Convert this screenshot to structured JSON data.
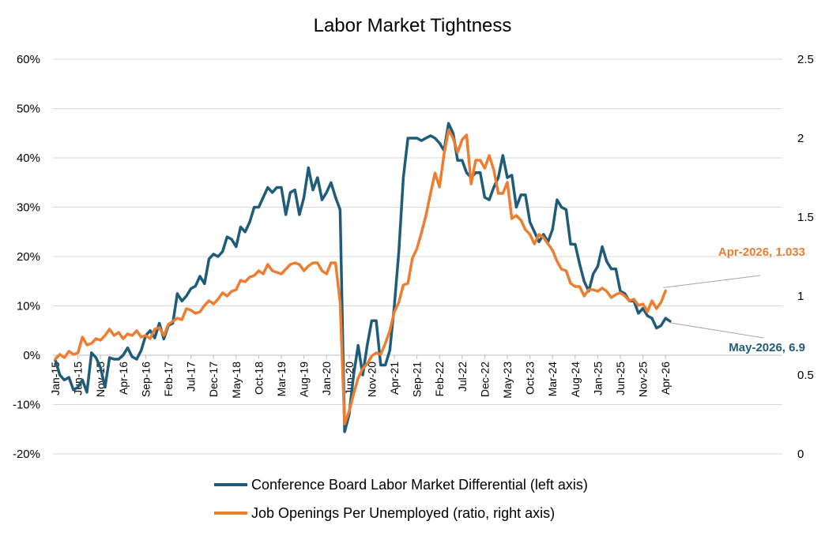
{
  "chart_data": {
    "type": "line",
    "title": "Labor Market Tightness",
    "x_tick_labels": [
      "Jan-15",
      "Jun-15",
      "Nov-15",
      "Apr-16",
      "Sep-16",
      "Feb-17",
      "Jul-17",
      "Dec-17",
      "May-18",
      "Oct-18",
      "Mar-19",
      "Aug-19",
      "Jan-20",
      "Jun-20",
      "Nov-20",
      "Apr-21",
      "Sep-21",
      "Feb-22",
      "Jul-22",
      "Dec-22",
      "May-23",
      "Oct-23",
      "Mar-24",
      "Aug-24",
      "Jan-25",
      "Jun-25",
      "Nov-25",
      "Apr-26"
    ],
    "y_left": {
      "ticks": [
        "-20%",
        "-10%",
        "0%",
        "10%",
        "20%",
        "30%",
        "40%",
        "50%",
        "60%"
      ],
      "range": [
        -20,
        60
      ]
    },
    "y_right": {
      "ticks": [
        "0",
        "0.5",
        "1",
        "1.5",
        "2",
        "2.5"
      ],
      "range": [
        0,
        2.5
      ]
    },
    "grid": "horizontal",
    "legend_position": "bottom",
    "series": [
      {
        "name": "Conference Board Labor Market Differential (left axis)",
        "axis": "left",
        "color": "#1f5c7a",
        "start": "Jan-15",
        "values": [
          -1.0,
          -4.0,
          -5.0,
          -4.5,
          -7.0,
          -6.5,
          -5.0,
          -7.5,
          0.5,
          -0.5,
          -2.5,
          -6.5,
          -0.5,
          -0.8,
          -0.8,
          0.0,
          1.5,
          -0.3,
          -0.8,
          1.0,
          4.0,
          5.0,
          3.5,
          6.5,
          3.3,
          6.0,
          6.5,
          12.5,
          11.0,
          12.0,
          13.5,
          14.0,
          16.0,
          14.5,
          19.5,
          20.5,
          20.0,
          21.0,
          24.0,
          23.5,
          22.0,
          26.0,
          25.0,
          27.0,
          30.0,
          30.0,
          32.0,
          34.0,
          33.0,
          34.0,
          34.0,
          28.5,
          33.0,
          33.5,
          28.5,
          32.0,
          38.0,
          33.5,
          36.0,
          31.5,
          33.0,
          35.0,
          32.0,
          29.5,
          -15.5,
          -12.0,
          -4.0,
          2.0,
          -4.0,
          2.0,
          7.0,
          7.0,
          -2.0,
          -2.0,
          1.0,
          10.0,
          21.0,
          36.0,
          44.0,
          44.0,
          44.0,
          43.5,
          44.0,
          44.5,
          44.0,
          43.0,
          41.5,
          47.0,
          45.0,
          39.5,
          39.5,
          37.0,
          36.0,
          37.0,
          37.0,
          32.0,
          31.5,
          34.0,
          36.0,
          40.5,
          36.0,
          36.5,
          30.0,
          32.5,
          32.5,
          27.0,
          25.0,
          23.0,
          24.5,
          23.0,
          25.5,
          31.5,
          30.0,
          29.5,
          22.5,
          22.5,
          18.5,
          15.0,
          13.0,
          16.5,
          18.0,
          22.0,
          19.0,
          17.5,
          17.5,
          13.0,
          12.5,
          11.0,
          11.0,
          8.5,
          9.5,
          8.0,
          7.5,
          5.5,
          6.0,
          7.5,
          6.9
        ]
      },
      {
        "name": "Job Openings Per Unemployed (ratio, right axis)",
        "axis": "right",
        "color": "#ed7d31",
        "start": "Jan-15",
        "values": [
          0.6,
          0.63,
          0.61,
          0.65,
          0.63,
          0.64,
          0.74,
          0.69,
          0.7,
          0.73,
          0.72,
          0.75,
          0.79,
          0.75,
          0.77,
          0.73,
          0.76,
          0.75,
          0.78,
          0.74,
          0.75,
          0.73,
          0.79,
          0.8,
          0.75,
          0.82,
          0.84,
          0.86,
          0.85,
          0.92,
          0.91,
          0.89,
          0.9,
          0.94,
          0.97,
          0.95,
          0.98,
          1.02,
          1.0,
          1.03,
          1.04,
          1.1,
          1.09,
          1.12,
          1.13,
          1.16,
          1.14,
          1.2,
          1.16,
          1.15,
          1.14,
          1.17,
          1.2,
          1.21,
          1.2,
          1.16,
          1.19,
          1.21,
          1.21,
          1.16,
          1.14,
          1.21,
          1.21,
          0.96,
          0.19,
          0.27,
          0.38,
          0.48,
          0.54,
          0.57,
          0.62,
          0.64,
          0.63,
          0.7,
          0.78,
          0.9,
          0.96,
          1.07,
          1.08,
          1.24,
          1.3,
          1.4,
          1.51,
          1.65,
          1.78,
          1.69,
          1.9,
          2.05,
          2.0,
          1.91,
          1.99,
          2.02,
          1.71,
          1.86,
          1.86,
          1.81,
          1.89,
          1.8,
          1.65,
          1.65,
          1.72,
          1.49,
          1.51,
          1.48,
          1.42,
          1.39,
          1.33,
          1.39,
          1.37,
          1.33,
          1.29,
          1.22,
          1.17,
          1.16,
          1.08,
          1.06,
          1.06,
          1.0,
          1.04,
          1.04,
          1.03,
          1.05,
          1.03,
          0.99,
          1.01,
          1.02,
          1.0,
          0.97,
          0.98,
          0.94,
          0.95,
          0.9,
          0.97,
          0.92,
          0.96,
          1.033
        ]
      }
    ],
    "annotations": [
      {
        "text": "Apr-2026, 1.033",
        "series": 1,
        "x": "Apr-26",
        "y": 1.033,
        "color": "#ed7d31"
      },
      {
        "text": "May-2026, 6.9",
        "series": 0,
        "x": "May-26",
        "y": 6.9,
        "color": "#1f5c7a"
      }
    ]
  }
}
